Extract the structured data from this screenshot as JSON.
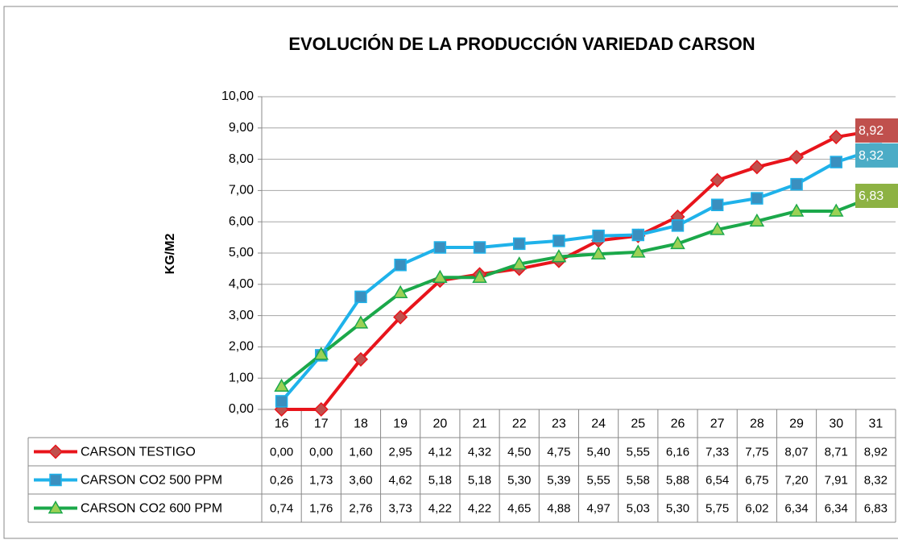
{
  "chart_data": {
    "type": "line",
    "title": "EVOLUCIÓN DE LA PRODUCCIÓN VARIEDAD CARSON",
    "y_label": "KG/M2",
    "categories": [
      "16",
      "17",
      "18",
      "19",
      "20",
      "21",
      "22",
      "23",
      "24",
      "25",
      "26",
      "27",
      "28",
      "29",
      "30",
      "31"
    ],
    "series": [
      {
        "name": "CARSON TESTIGO",
        "color": "#e8141b",
        "marker": "diamond",
        "marker_color": "#c0504d",
        "label_color": "#c0504d",
        "values": [
          0,
          0,
          1.6,
          2.95,
          4.12,
          4.32,
          4.5,
          4.75,
          5.4,
          5.55,
          6.16,
          7.33,
          7.75,
          8.07,
          8.71,
          8.92
        ],
        "value_labels": [
          "0,00",
          "0,00",
          "1,60",
          "2,95",
          "4,12",
          "4,32",
          "4,50",
          "4,75",
          "5,40",
          "5,55",
          "6,16",
          "7,33",
          "7,75",
          "8,07",
          "8,71",
          "8,92"
        ]
      },
      {
        "name": "CARSON CO2 500 PPM",
        "color": "#1fb2ea",
        "marker": "square",
        "marker_color": "#3a8fbf",
        "label_color": "#4bacc6",
        "values": [
          0.26,
          1.73,
          3.6,
          4.62,
          5.18,
          5.18,
          5.3,
          5.39,
          5.55,
          5.58,
          5.88,
          6.54,
          6.75,
          7.2,
          7.91,
          8.32
        ],
        "value_labels": [
          "0,26",
          "1,73",
          "3,60",
          "4,62",
          "5,18",
          "5,18",
          "5,30",
          "5,39",
          "5,55",
          "5,58",
          "5,88",
          "6,54",
          "6,75",
          "7,20",
          "7,91",
          "8,32"
        ]
      },
      {
        "name": "CARSON CO2 600 PPM",
        "color": "#1ba84a",
        "marker": "triangle",
        "marker_color": "#9bd155",
        "label_color": "#8db243",
        "values": [
          0.74,
          1.76,
          2.76,
          3.73,
          4.22,
          4.22,
          4.65,
          4.88,
          4.97,
          5.03,
          5.3,
          5.75,
          6.02,
          6.34,
          6.34,
          6.83
        ],
        "value_labels": [
          "0,74",
          "1,76",
          "2,76",
          "3,73",
          "4,22",
          "4,22",
          "4,65",
          "4,88",
          "4,97",
          "5,03",
          "5,30",
          "5,75",
          "6,02",
          "6,34",
          "6,34",
          "6,83"
        ]
      }
    ],
    "ylim": [
      0,
      10
    ],
    "yticks": [
      {
        "value": 0,
        "label": "0,00"
      },
      {
        "value": 1,
        "label": "1,00"
      },
      {
        "value": 2,
        "label": "2,00"
      },
      {
        "value": 3,
        "label": "3,00"
      },
      {
        "value": 4,
        "label": "4,00"
      },
      {
        "value": 5,
        "label": "5,00"
      },
      {
        "value": 6,
        "label": "6,00"
      },
      {
        "value": 7,
        "label": "7,00"
      },
      {
        "value": 8,
        "label": "8,00"
      },
      {
        "value": 9,
        "label": "9,00"
      },
      {
        "value": 10,
        "label": "10,00"
      }
    ],
    "grid": true
  }
}
